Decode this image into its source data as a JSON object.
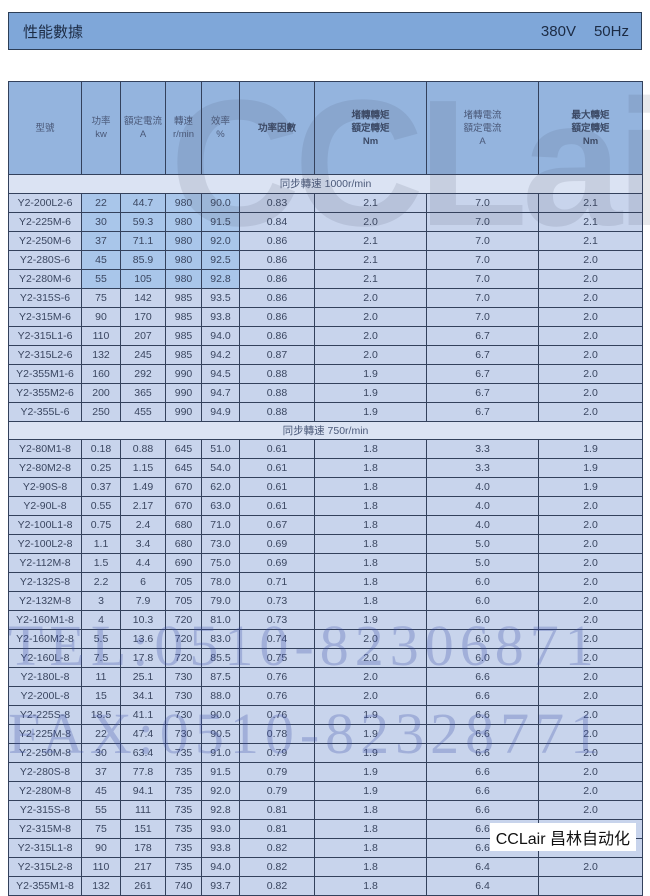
{
  "title": {
    "label": "性能數據",
    "voltage": "380V",
    "frequency": "50Hz"
  },
  "headers": [
    "型號",
    "功率\nkw",
    "額定電流\nA",
    "轉速\nr/min",
    "效率\n%",
    "功率因數",
    "堵轉轉矩\n額定轉矩\nNm",
    "堵轉電流\n額定電流\nA",
    "最大轉矩\n額定轉矩\nNm"
  ],
  "sections": [
    {
      "label": "同步轉速 1000r/min",
      "rows": [
        [
          "Y2-200L2-6",
          "22",
          "44.7",
          "980",
          "90.0",
          "0.83",
          "2.1",
          "7.0",
          "2.1"
        ],
        [
          "Y2-225M-6",
          "30",
          "59.3",
          "980",
          "91.5",
          "0.84",
          "2.0",
          "7.0",
          "2.1"
        ],
        [
          "Y2-250M-6",
          "37",
          "71.1",
          "980",
          "92.0",
          "0.86",
          "2.1",
          "7.0",
          "2.1"
        ],
        [
          "Y2-280S-6",
          "45",
          "85.9",
          "980",
          "92.5",
          "0.86",
          "2.1",
          "7.0",
          "2.0"
        ],
        [
          "Y2-280M-6",
          "55",
          "105",
          "980",
          "92.8",
          "0.86",
          "2.1",
          "7.0",
          "2.0"
        ],
        [
          "Y2-315S-6",
          "75",
          "142",
          "985",
          "93.5",
          "0.86",
          "2.0",
          "7.0",
          "2.0"
        ],
        [
          "Y2-315M-6",
          "90",
          "170",
          "985",
          "93.8",
          "0.86",
          "2.0",
          "7.0",
          "2.0"
        ],
        [
          "Y2-315L1-6",
          "110",
          "207",
          "985",
          "94.0",
          "0.86",
          "2.0",
          "6.7",
          "2.0"
        ],
        [
          "Y2-315L2-6",
          "132",
          "245",
          "985",
          "94.2",
          "0.87",
          "2.0",
          "6.7",
          "2.0"
        ],
        [
          "Y2-355M1-6",
          "160",
          "292",
          "990",
          "94.5",
          "0.88",
          "1.9",
          "6.7",
          "2.0"
        ],
        [
          "Y2-355M2-6",
          "200",
          "365",
          "990",
          "94.7",
          "0.88",
          "1.9",
          "6.7",
          "2.0"
        ],
        [
          "Y2-355L-6",
          "250",
          "455",
          "990",
          "94.9",
          "0.88",
          "1.9",
          "6.7",
          "2.0"
        ]
      ]
    },
    {
      "label": "同步轉速 750r/min",
      "rows": [
        [
          "Y2-80M1-8",
          "0.18",
          "0.88",
          "645",
          "51.0",
          "0.61",
          "1.8",
          "3.3",
          "1.9"
        ],
        [
          "Y2-80M2-8",
          "0.25",
          "1.15",
          "645",
          "54.0",
          "0.61",
          "1.8",
          "3.3",
          "1.9"
        ],
        [
          "Y2-90S-8",
          "0.37",
          "1.49",
          "670",
          "62.0",
          "0.61",
          "1.8",
          "4.0",
          "1.9"
        ],
        [
          "Y2-90L-8",
          "0.55",
          "2.17",
          "670",
          "63.0",
          "0.61",
          "1.8",
          "4.0",
          "2.0"
        ],
        [
          "Y2-100L1-8",
          "0.75",
          "2.4",
          "680",
          "71.0",
          "0.67",
          "1.8",
          "4.0",
          "2.0"
        ],
        [
          "Y2-100L2-8",
          "1.1",
          "3.4",
          "680",
          "73.0",
          "0.69",
          "1.8",
          "5.0",
          "2.0"
        ],
        [
          "Y2-112M-8",
          "1.5",
          "4.4",
          "690",
          "75.0",
          "0.69",
          "1.8",
          "5.0",
          "2.0"
        ],
        [
          "Y2-132S-8",
          "2.2",
          "6",
          "705",
          "78.0",
          "0.71",
          "1.8",
          "6.0",
          "2.0"
        ],
        [
          "Y2-132M-8",
          "3",
          "7.9",
          "705",
          "79.0",
          "0.73",
          "1.8",
          "6.0",
          "2.0"
        ],
        [
          "Y2-160M1-8",
          "4",
          "10.3",
          "720",
          "81.0",
          "0.73",
          "1.9",
          "6.0",
          "2.0"
        ],
        [
          "Y2-160M2-8",
          "5.5",
          "13.6",
          "720",
          "83.0",
          "0.74",
          "2.0",
          "6.0",
          "2.0"
        ],
        [
          "Y2-160L-8",
          "7.5",
          "17.8",
          "720",
          "85.5",
          "0.75",
          "2.0",
          "6.0",
          "2.0"
        ],
        [
          "Y2-180L-8",
          "11",
          "25.1",
          "730",
          "87.5",
          "0.76",
          "2.0",
          "6.6",
          "2.0"
        ],
        [
          "Y2-200L-8",
          "15",
          "34.1",
          "730",
          "88.0",
          "0.76",
          "2.0",
          "6.6",
          "2.0"
        ],
        [
          "Y2-225S-8",
          "18.5",
          "41.1",
          "730",
          "90.0",
          "0.76",
          "1.9",
          "6.6",
          "2.0"
        ],
        [
          "Y2-225M-8",
          "22",
          "47.4",
          "730",
          "90.5",
          "0.78",
          "1.9",
          "6.6",
          "2.0"
        ],
        [
          "Y2-250M-8",
          "30",
          "63.4",
          "735",
          "91.0",
          "0.79",
          "1.9",
          "6.6",
          "2.0"
        ],
        [
          "Y2-280S-8",
          "37",
          "77.8",
          "735",
          "91.5",
          "0.79",
          "1.9",
          "6.6",
          "2.0"
        ],
        [
          "Y2-280M-8",
          "45",
          "94.1",
          "735",
          "92.0",
          "0.79",
          "1.9",
          "6.6",
          "2.0"
        ],
        [
          "Y2-315S-8",
          "55",
          "111",
          "735",
          "92.8",
          "0.81",
          "1.8",
          "6.6",
          "2.0"
        ],
        [
          "Y2-315M-8",
          "75",
          "151",
          "735",
          "93.0",
          "0.81",
          "1.8",
          "6.6",
          "2.0"
        ],
        [
          "Y2-315L1-8",
          "90",
          "178",
          "735",
          "93.8",
          "0.82",
          "1.8",
          "6.6",
          "2.0"
        ],
        [
          "Y2-315L2-8",
          "110",
          "217",
          "735",
          "94.0",
          "0.82",
          "1.8",
          "6.4",
          "2.0"
        ],
        [
          "Y2-355M1-8",
          "132",
          "261",
          "740",
          "93.7",
          "0.82",
          "1.8",
          "6.4",
          ""
        ]
      ]
    }
  ],
  "watermarks": {
    "logo": "CCLair",
    "tel": "TEL:0510-82306871",
    "fax": "FAX:0510-82328771"
  },
  "brand": "CCLair 昌林自动化",
  "colors": {
    "title_bar": "#7fa7d9",
    "header": "#94b4de",
    "row": "#c8d4ec",
    "section": "#dbe3f3"
  }
}
